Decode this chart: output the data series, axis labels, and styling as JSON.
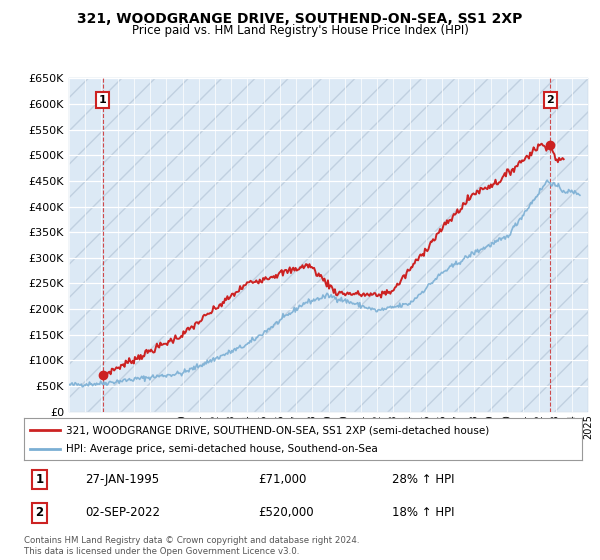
{
  "title": "321, WOODGRANGE DRIVE, SOUTHEND-ON-SEA, SS1 2XP",
  "subtitle": "Price paid vs. HM Land Registry's House Price Index (HPI)",
  "legend_line1": "321, WOODGRANGE DRIVE, SOUTHEND-ON-SEA, SS1 2XP (semi-detached house)",
  "legend_line2": "HPI: Average price, semi-detached house, Southend-on-Sea",
  "transaction1_label": "1",
  "transaction1_date": "27-JAN-1995",
  "transaction1_price": "£71,000",
  "transaction1_hpi": "28% ↑ HPI",
  "transaction1_year": 1995.07,
  "transaction1_value": 71000,
  "transaction2_label": "2",
  "transaction2_date": "02-SEP-2022",
  "transaction2_price": "£520,000",
  "transaction2_hpi": "18% ↑ HPI",
  "transaction2_year": 2022.67,
  "transaction2_value": 520000,
  "footer": "Contains HM Land Registry data © Crown copyright and database right 2024.\nThis data is licensed under the Open Government Licence v3.0.",
  "xmin": 1993,
  "xmax": 2025,
  "ymin": 0,
  "ymax": 650000,
  "yticks": [
    0,
    50000,
    100000,
    150000,
    200000,
    250000,
    300000,
    350000,
    400000,
    450000,
    500000,
    550000,
    600000,
    650000
  ],
  "hpi_color": "#7bafd4",
  "price_color": "#cc2222",
  "bg_color": "#dce9f5",
  "grid_color": "#ffffff"
}
